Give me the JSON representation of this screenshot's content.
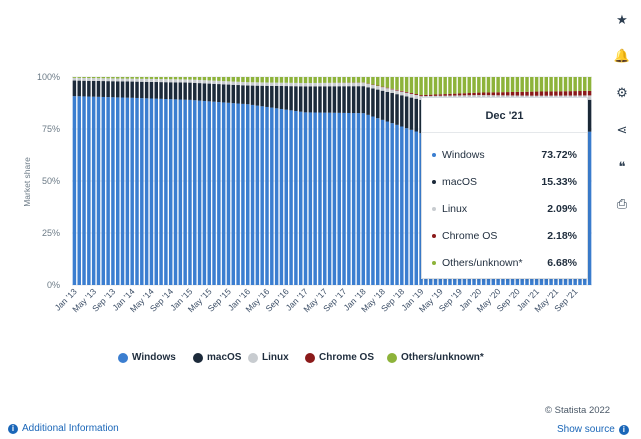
{
  "chart_data": {
    "type": "bar",
    "stacked": true,
    "ylabel": "Market share",
    "y_ticks": [
      "0%",
      "25%",
      "50%",
      "75%",
      "100%"
    ],
    "ylim": [
      0,
      100
    ],
    "x_tick_labels": [
      "Jan '13",
      "May '13",
      "Sep '13",
      "Jan '14",
      "May '14",
      "Sep '14",
      "Jan '15",
      "May '15",
      "Sep '15",
      "Jan '16",
      "May '16",
      "Sep '16",
      "Jan '17",
      "May '17",
      "Sep '17",
      "Jan '18",
      "May '18",
      "Sep '18",
      "Jan '19",
      "May '19",
      "Sep '19",
      "Jan '20",
      "May '20",
      "Sep '20",
      "Jan '21",
      "May '21",
      "Sep '21"
    ],
    "series": [
      {
        "name": "Windows",
        "color": "#3b7ed0",
        "key_points": {
          "Jan '13": 90.8,
          "Jan '14": 90.0,
          "Jan '15": 89.0,
          "Jan '16": 86.9,
          "Jan '17": 83.0,
          "Jan '18": 82.6,
          "Jan '19": 73.0,
          "Jan '20": 73.0,
          "Jan '21": 73.5,
          "Dec '21": 73.72
        }
      },
      {
        "name": "macOS",
        "color": "#1c2a3a",
        "key_points": {
          "Jan '13": 7.5,
          "Jan '14": 7.8,
          "Jan '15": 8.3,
          "Jan '16": 9.0,
          "Jan '17": 12.5,
          "Jan '18": 13.0,
          "Jan '19": 16.0,
          "Jan '20": 16.5,
          "Jan '21": 15.5,
          "Dec '21": 15.33
        }
      },
      {
        "name": "Linux",
        "color": "#c8ccd0",
        "key_points": {
          "Jan '13": 1.3,
          "Jan '14": 1.4,
          "Jan '15": 1.5,
          "Jan '16": 1.6,
          "Jan '17": 1.6,
          "Jan '18": 1.7,
          "Jan '19": 1.8,
          "Jan '20": 1.8,
          "Jan '21": 2.0,
          "Dec '21": 2.09
        }
      },
      {
        "name": "Chrome OS",
        "color": "#8b1a1a",
        "key_points": {
          "Jan '13": 0,
          "Jan '14": 0,
          "Jan '15": 0,
          "Jan '16": 0,
          "Jan '17": 0,
          "Jan '18": 0.1,
          "Jan '19": 0.5,
          "Jan '20": 1.2,
          "Jan '21": 2.0,
          "Dec '21": 2.18
        }
      },
      {
        "name": "Others/unknown*",
        "color": "#8db33a",
        "key_points": {
          "Jan '13": 0.4,
          "Jan '14": 0.8,
          "Jan '15": 1.2,
          "Jan '16": 2.5,
          "Jan '17": 2.9,
          "Jan '18": 2.6,
          "Jan '19": 8.7,
          "Jan '20": 7.5,
          "Jan '21": 7.0,
          "Dec '21": 6.68
        }
      }
    ],
    "tooltip": {
      "title": "Dec '21",
      "rows": [
        {
          "name": "Windows",
          "value": "73.72%",
          "color": "#3b7ed0"
        },
        {
          "name": "macOS",
          "value": "15.33%",
          "color": "#1c2a3a"
        },
        {
          "name": "Linux",
          "value": "2.09%",
          "color": "#c8ccd0"
        },
        {
          "name": "Chrome OS",
          "value": "2.18%",
          "color": "#8b1a1a"
        },
        {
          "name": "Others/unknown*",
          "value": "6.68%",
          "color": "#8db33a"
        }
      ]
    },
    "legend_position": "bottom-center",
    "grid": true
  },
  "legend": [
    {
      "label": "Windows",
      "color": "#3b7ed0"
    },
    {
      "label": "macOS",
      "color": "#1c2a3a"
    },
    {
      "label": "Linux",
      "color": "#c8ccd0"
    },
    {
      "label": "Chrome OS",
      "color": "#8b1a1a"
    },
    {
      "label": "Others/unknown*",
      "color": "#8db33a"
    }
  ],
  "sidebar": [
    {
      "name": "favorite-icon",
      "glyph": "★"
    },
    {
      "name": "notification-icon",
      "glyph": "🔔"
    },
    {
      "name": "settings-icon",
      "glyph": "⚙"
    },
    {
      "name": "share-icon",
      "glyph": "⋖"
    },
    {
      "name": "quote-icon",
      "glyph": "❝"
    },
    {
      "name": "print-icon",
      "glyph": "⎙"
    }
  ],
  "footer": {
    "additional_info": "Additional Information",
    "credit": "© Statista 2022",
    "show_source": "Show source"
  }
}
